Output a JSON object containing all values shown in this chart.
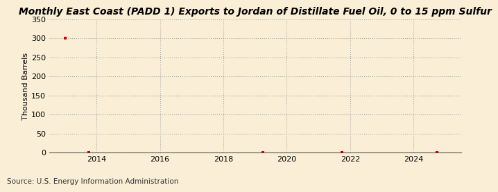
{
  "title": "Monthly East Coast (PADD 1) Exports to Jordan of Distillate Fuel Oil, 0 to 15 ppm Sulfur",
  "ylabel": "Thousand Barrels",
  "source": "Source: U.S. Energy Information Administration",
  "background_color": "#faefd6",
  "plot_bg_color": "#faefd6",
  "x_data": [
    2013.0,
    2013.75,
    2019.25,
    2021.75,
    2024.75
  ],
  "y_data": [
    300,
    0,
    0,
    0,
    0
  ],
  "xlim": [
    2012.5,
    2025.5
  ],
  "ylim": [
    0,
    350
  ],
  "yticks": [
    0,
    50,
    100,
    150,
    200,
    250,
    300,
    350
  ],
  "xticks": [
    2014,
    2016,
    2018,
    2020,
    2022,
    2024
  ],
  "marker_color": "#cc0000",
  "marker": "s",
  "marker_size": 3,
  "title_fontsize": 10,
  "label_fontsize": 8,
  "tick_fontsize": 8,
  "source_fontsize": 7.5,
  "grid_color": "#aaaaaa",
  "grid_linestyle": ":",
  "grid_linewidth": 0.8
}
